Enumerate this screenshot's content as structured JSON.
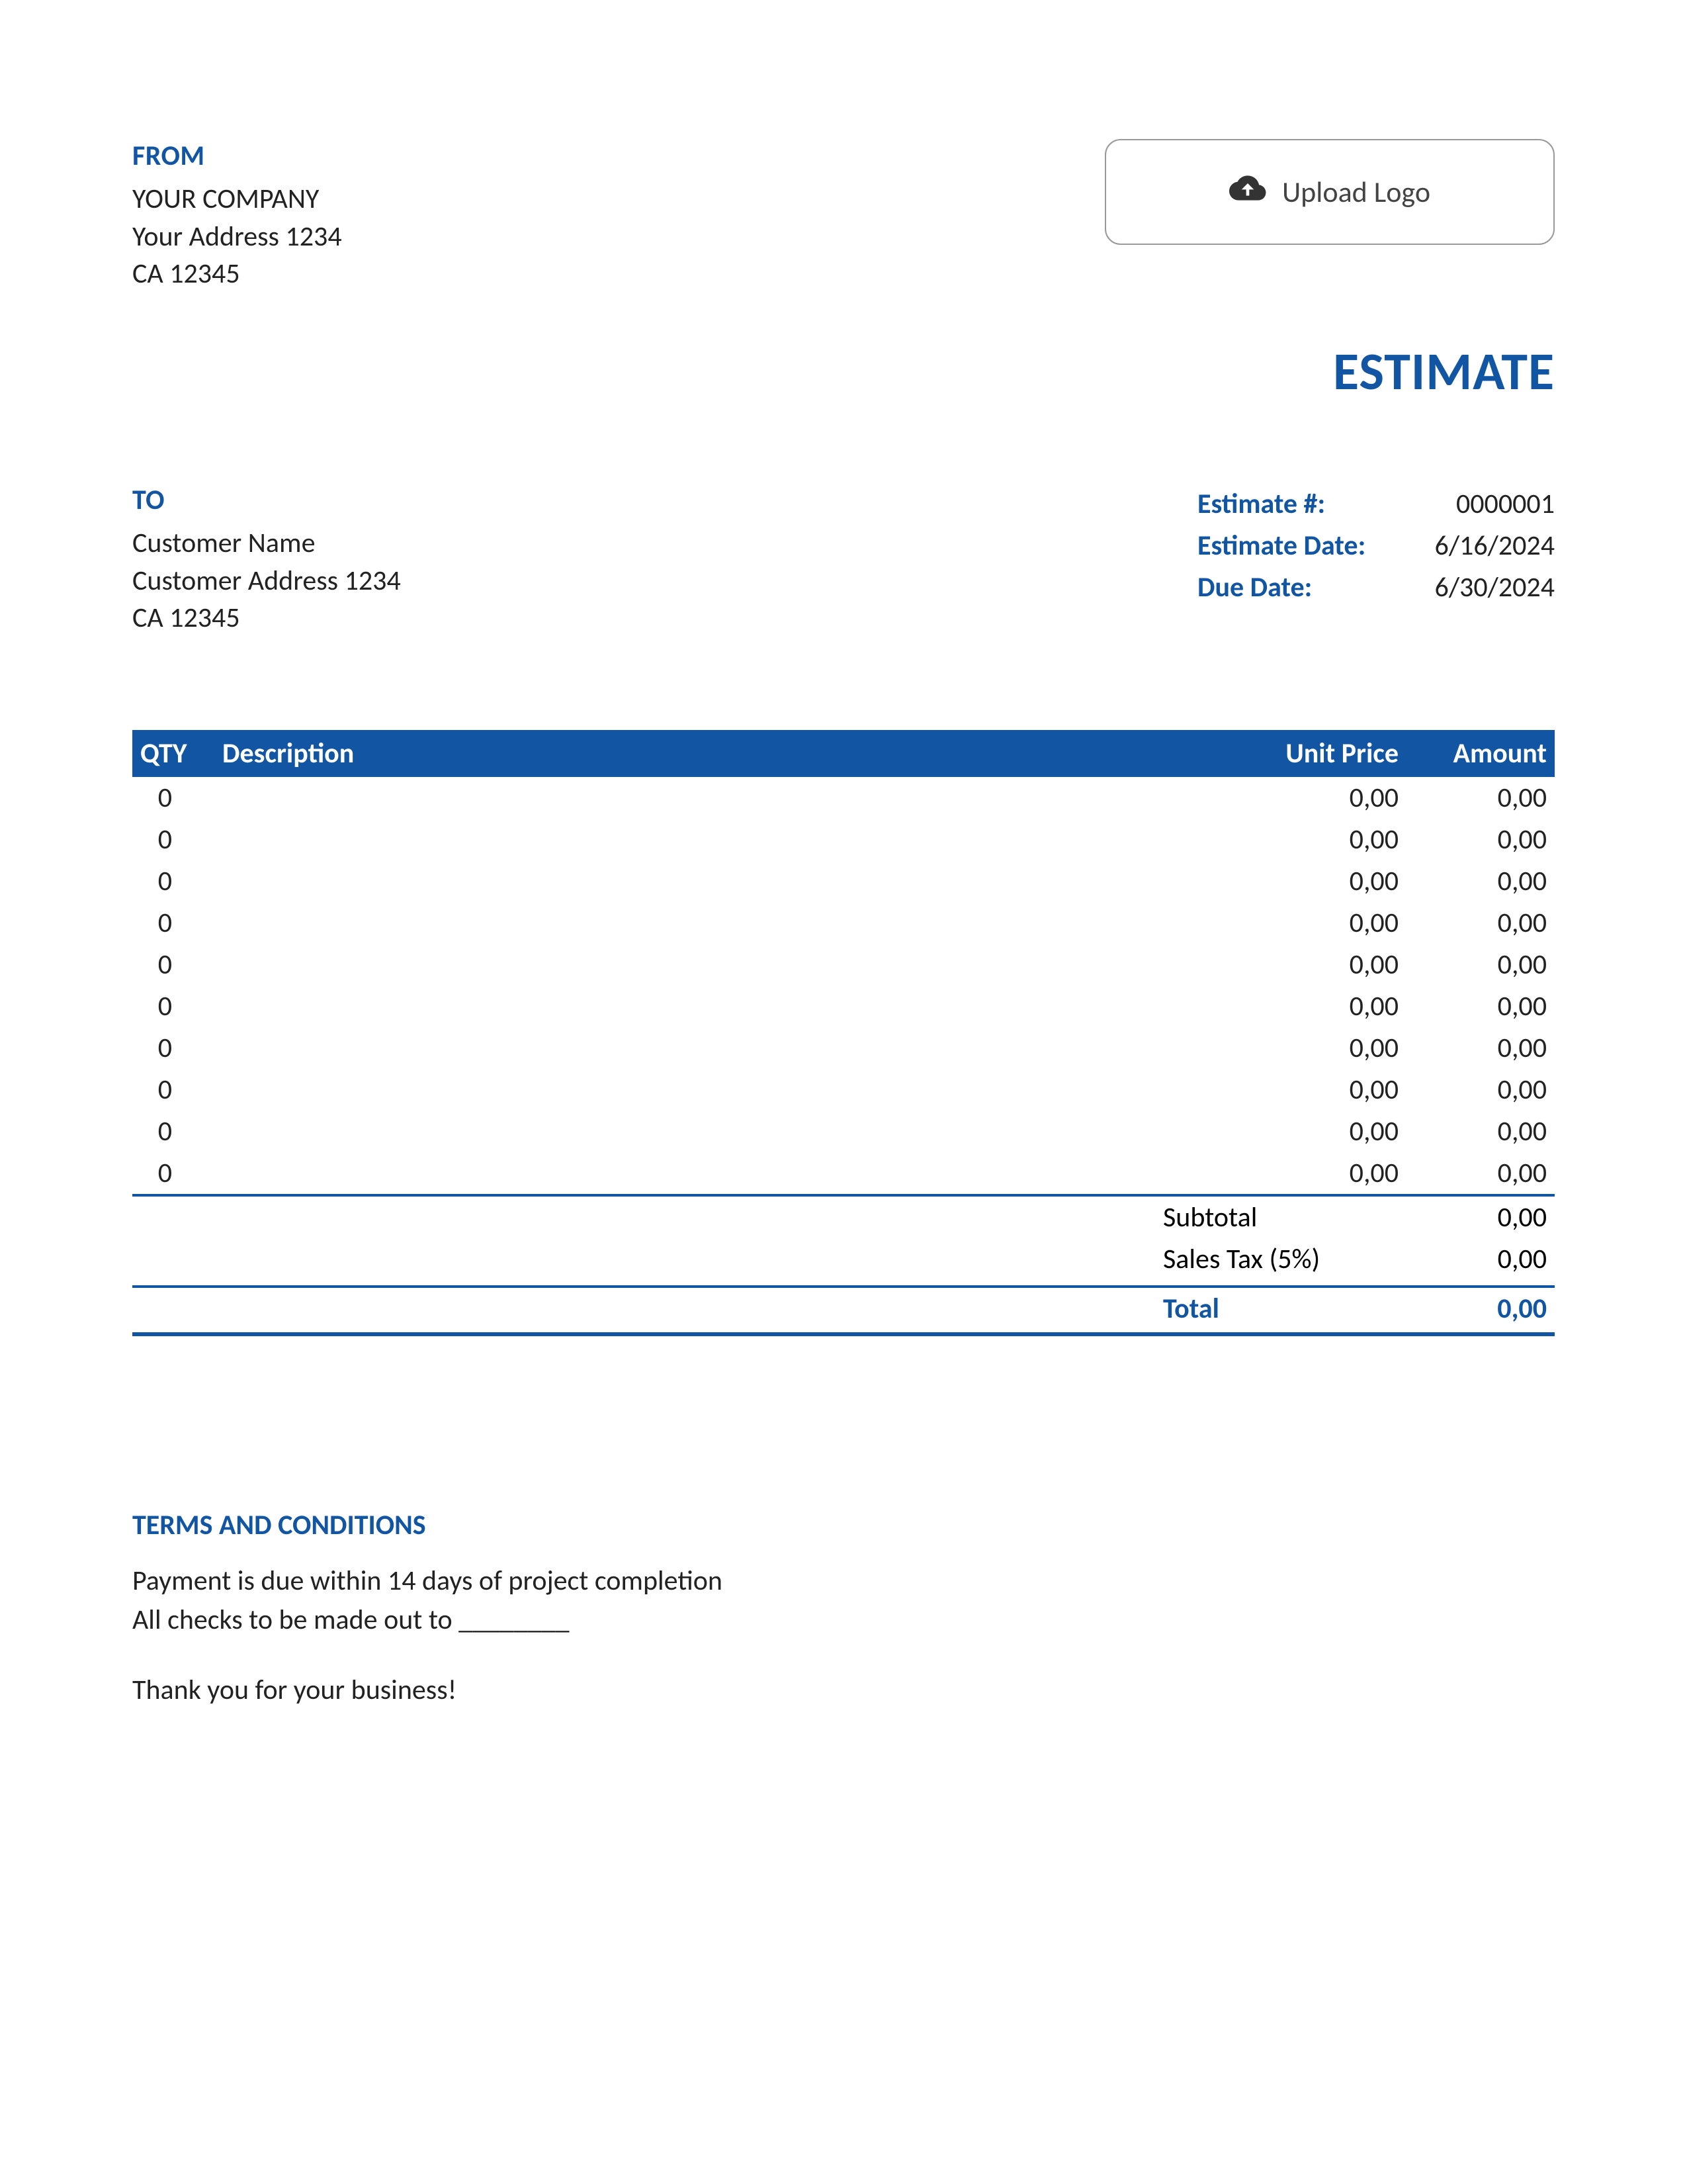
{
  "colors": {
    "accent": "#1155a3",
    "text": "#222222",
    "bg": "#ffffff",
    "border_light": "#999999"
  },
  "from": {
    "label": "FROM",
    "company": "YOUR COMPANY",
    "address": "Your Address 1234",
    "city": "CA 12345"
  },
  "logo": {
    "text": "Upload Logo"
  },
  "title": "ESTIMATE",
  "to": {
    "label": "TO",
    "name": "Customer Name",
    "address": "Customer Address 1234",
    "city": "CA 12345"
  },
  "meta": {
    "number_label": "Estimate #:",
    "number_value": "0000001",
    "date_label": "Estimate Date:",
    "date_value": "6/16/2024",
    "due_label": "Due Date:",
    "due_value": "6/30/2024"
  },
  "table": {
    "type": "table",
    "header_bg": "#1155a3",
    "header_fg": "#ffffff",
    "columns": {
      "qty": "QTY",
      "description": "Description",
      "unit_price": "Unit Price",
      "amount": "Amount"
    },
    "rows": [
      {
        "qty": "0",
        "desc": "",
        "unit": "0,00",
        "amount": "0,00"
      },
      {
        "qty": "0",
        "desc": "",
        "unit": "0,00",
        "amount": "0,00"
      },
      {
        "qty": "0",
        "desc": "",
        "unit": "0,00",
        "amount": "0,00"
      },
      {
        "qty": "0",
        "desc": "",
        "unit": "0,00",
        "amount": "0,00"
      },
      {
        "qty": "0",
        "desc": "",
        "unit": "0,00",
        "amount": "0,00"
      },
      {
        "qty": "0",
        "desc": "",
        "unit": "0,00",
        "amount": "0,00"
      },
      {
        "qty": "0",
        "desc": "",
        "unit": "0,00",
        "amount": "0,00"
      },
      {
        "qty": "0",
        "desc": "",
        "unit": "0,00",
        "amount": "0,00"
      },
      {
        "qty": "0",
        "desc": "",
        "unit": "0,00",
        "amount": "0,00"
      },
      {
        "qty": "0",
        "desc": "",
        "unit": "0,00",
        "amount": "0,00"
      }
    ]
  },
  "summary": {
    "subtotal_label": "Subtotal",
    "subtotal_value": "0,00",
    "tax_label": "Sales Tax (5%)",
    "tax_value": "0,00",
    "total_label": "Total",
    "total_value": "0,00"
  },
  "terms": {
    "heading": "TERMS AND CONDITIONS",
    "line1": "Payment is due within 14 days of project completion",
    "line2": "All checks to be made out to ________",
    "thank_you": "Thank you for your business!"
  }
}
